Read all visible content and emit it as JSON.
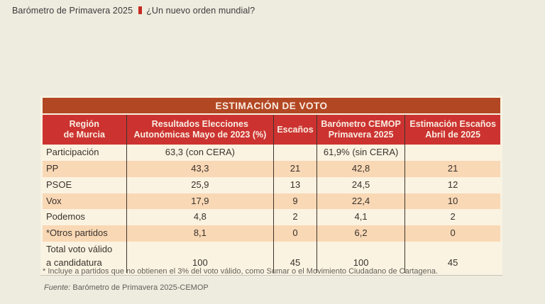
{
  "header": {
    "title_left": "Barómetro de Primavera 2025",
    "title_right": "¿Un nuevo orden mundial?",
    "accent_color": "#c62b21"
  },
  "table": {
    "title": "ESTIMACIÓN DE VOTO",
    "colors": {
      "title_band_bg": "#b24723",
      "header_bg": "#cc3330",
      "header_text": "#f9ece2",
      "row_cream": "#fbf3e1",
      "row_peach": "#f9d8b5",
      "grid_line": "#3e332c"
    },
    "columns": [
      "Región\nde Murcia",
      "Resultados Elecciones\nAutonómicas Mayo de 2023 (%)",
      "Escaños",
      "Barómetro CEMOP\nPrimavera 2025",
      "Estimación Escaños\nAbril de 2025"
    ],
    "rows": [
      {
        "label": "Participación",
        "cells": [
          "63,3 (con CERA)",
          "",
          "61,9% (sin CERA)",
          ""
        ]
      },
      {
        "label": "PP",
        "cells": [
          "43,3",
          "21",
          "42,8",
          "21"
        ]
      },
      {
        "label": "PSOE",
        "cells": [
          "25,9",
          "13",
          "24,5",
          "12"
        ]
      },
      {
        "label": "Vox",
        "cells": [
          "17,9",
          "9",
          "22,4",
          "10"
        ]
      },
      {
        "label": "Podemos",
        "cells": [
          "4,8",
          "2",
          "4,1",
          "2"
        ]
      },
      {
        "label": "*Otros partidos",
        "cells": [
          "8,1",
          "0",
          "6,2",
          "0"
        ]
      },
      {
        "label": "Total voto válido\na candidatura",
        "cells": [
          "100",
          "45",
          "100",
          "45"
        ]
      }
    ]
  },
  "footnotes": {
    "asterisk": "* Incluye a partidos que no obtienen el 3% del voto válido, como Sumar o el Movimiento Ciudadano de Cartagena.",
    "source_label": "Fuente:",
    "source_text": " Barómetro de Primavera 2025-CEMOP"
  }
}
